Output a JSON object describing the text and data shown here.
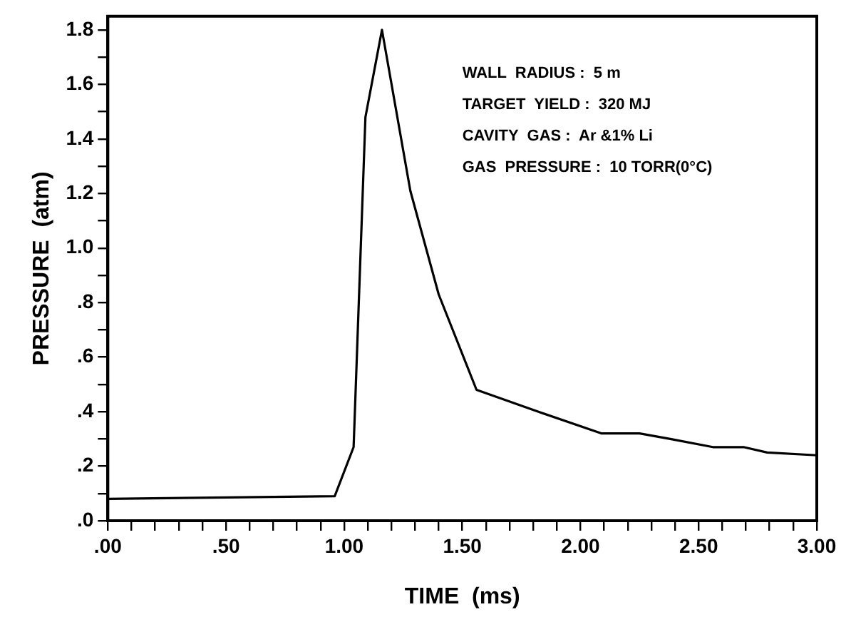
{
  "chart_data": {
    "type": "line",
    "xlabel": "TIME  (ms)",
    "ylabel": "PRESSURE  (atm)",
    "x": [
      0,
      0.96,
      1.04,
      1.09,
      1.16,
      1.28,
      1.4,
      1.56,
      1.82,
      2.09,
      2.25,
      2.38,
      2.56,
      2.69,
      2.79,
      3.0
    ],
    "series": [
      {
        "color": "#000000",
        "values": [
          0.08,
          0.09,
          0.27,
          1.48,
          1.8,
          1.21,
          0.83,
          0.48,
          0.4,
          0.32,
          0.32,
          0.3,
          0.27,
          0.27,
          0.25,
          0.24
        ]
      }
    ],
    "xlim": [
      0,
      3.0
    ],
    "ylim": [
      0,
      1.85
    ],
    "xticks": [
      {
        "value": 0,
        "label": ".00"
      },
      {
        "value": 0.1,
        "label": null
      },
      {
        "value": 0.2,
        "label": null
      },
      {
        "value": 0.3,
        "label": null
      },
      {
        "value": 0.4,
        "label": null
      },
      {
        "value": 0.5,
        "label": ".50"
      },
      {
        "value": 0.6,
        "label": null
      },
      {
        "value": 0.7,
        "label": null
      },
      {
        "value": 0.8,
        "label": null
      },
      {
        "value": 0.9,
        "label": null
      },
      {
        "value": 1.0,
        "label": "1.00"
      },
      {
        "value": 1.1,
        "label": null
      },
      {
        "value": 1.2,
        "label": null
      },
      {
        "value": 1.3,
        "label": null
      },
      {
        "value": 1.4,
        "label": null
      },
      {
        "value": 1.5,
        "label": "1.50"
      },
      {
        "value": 1.6,
        "label": null
      },
      {
        "value": 1.7,
        "label": null
      },
      {
        "value": 1.8,
        "label": null
      },
      {
        "value": 1.9,
        "label": null
      },
      {
        "value": 2.0,
        "label": "2.00"
      },
      {
        "value": 2.1,
        "label": null
      },
      {
        "value": 2.2,
        "label": null
      },
      {
        "value": 2.3,
        "label": null
      },
      {
        "value": 2.4,
        "label": null
      },
      {
        "value": 2.5,
        "label": "2.50"
      },
      {
        "value": 2.6,
        "label": null
      },
      {
        "value": 2.7,
        "label": null
      },
      {
        "value": 2.8,
        "label": null
      },
      {
        "value": 2.9,
        "label": null
      },
      {
        "value": 3.0,
        "label": "3.00"
      }
    ],
    "yticks": [
      {
        "value": 0,
        "label": ".0"
      },
      {
        "value": 0.1,
        "label": null
      },
      {
        "value": 0.2,
        "label": ".2"
      },
      {
        "value": 0.3,
        "label": null
      },
      {
        "value": 0.4,
        "label": ".4"
      },
      {
        "value": 0.5,
        "label": null
      },
      {
        "value": 0.6,
        "label": ".6"
      },
      {
        "value": 0.7,
        "label": null
      },
      {
        "value": 0.8,
        "label": ".8"
      },
      {
        "value": 0.9,
        "label": null
      },
      {
        "value": 1.0,
        "label": "1.0"
      },
      {
        "value": 1.1,
        "label": null
      },
      {
        "value": 1.2,
        "label": "1.2"
      },
      {
        "value": 1.3,
        "label": null
      },
      {
        "value": 1.4,
        "label": "1.4"
      },
      {
        "value": 1.5,
        "label": null
      },
      {
        "value": 1.6,
        "label": "1.6"
      },
      {
        "value": 1.7,
        "label": null
      },
      {
        "value": 1.8,
        "label": "1.8"
      }
    ],
    "annotations": [
      "WALL  RADIUS :  5 m",
      "TARGET  YIELD :  320 MJ",
      "CAVITY  GAS :  Ar &1% Li",
      "GAS  PRESSURE :  10 TORR(0°C)"
    ],
    "grid": false,
    "legend": false,
    "marker": "none",
    "line_style": "solid"
  }
}
